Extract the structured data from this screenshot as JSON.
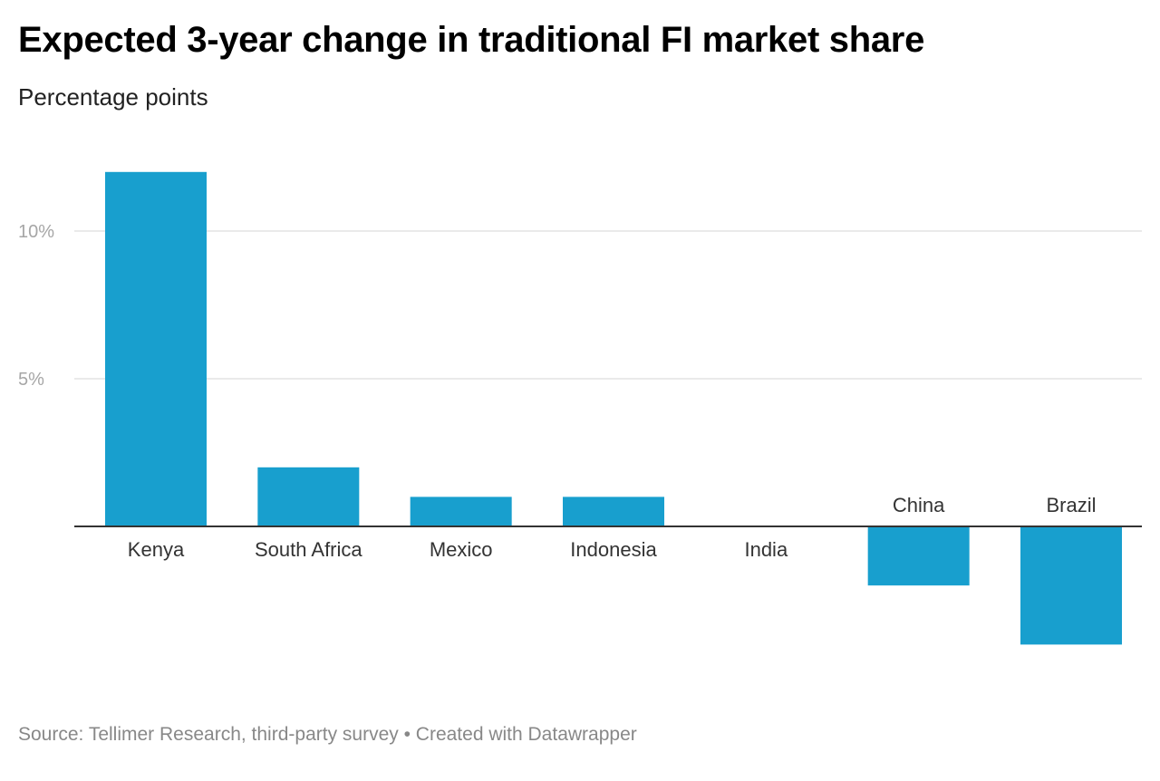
{
  "colors": {
    "bar": "#189fce",
    "grid": "#e3e3e3",
    "axis": "#333333"
  },
  "chart_data": {
    "type": "bar",
    "title": "Expected 3-year change in traditional FI market share",
    "subtitle": "Percentage points",
    "xlabel": "",
    "ylabel": "",
    "categories": [
      "Kenya",
      "South Africa",
      "Mexico",
      "Indonesia",
      "India",
      "China",
      "Brazil"
    ],
    "values": [
      12,
      2,
      1,
      1,
      0,
      -2,
      -4
    ],
    "ylim": [
      -4,
      12
    ],
    "yticks": [
      {
        "value": 5,
        "label": "5%"
      },
      {
        "value": 10,
        "label": "10%"
      }
    ],
    "grid": true,
    "source": "Source: Tellimer Research, third-party survey • Created with Datawrapper"
  }
}
